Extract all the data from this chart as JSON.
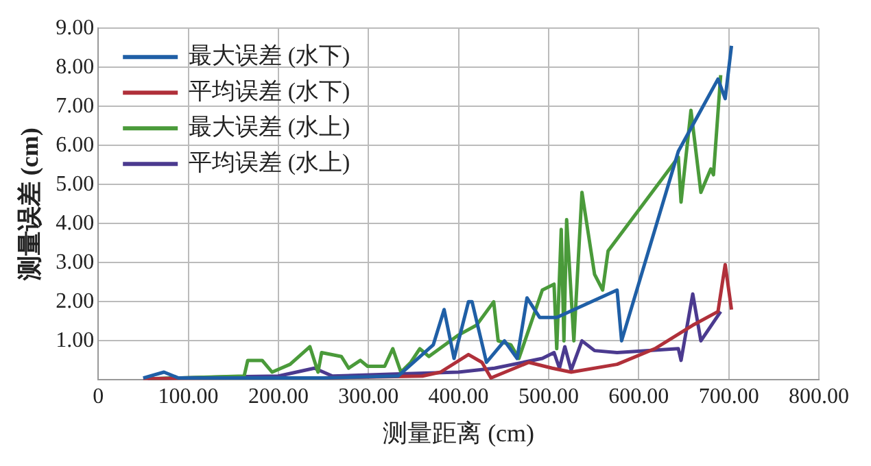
{
  "chart_data": {
    "type": "line",
    "xlabel": "测量距离 (cm)",
    "ylabel": "测量误差 (cm)",
    "xlim": [
      0,
      800
    ],
    "ylim": [
      0,
      9
    ],
    "xticks": [
      0,
      {
        "value": 100,
        "label": "100.00"
      },
      {
        "value": 200,
        "label": "200.00"
      },
      {
        "value": 300,
        "label": "300.00"
      },
      {
        "value": 400,
        "label": "400.00"
      },
      {
        "value": 500,
        "label": "500.00"
      },
      {
        "value": 600,
        "label": "600.00"
      },
      {
        "value": 700,
        "label": "700.00"
      },
      {
        "value": 800,
        "label": "800.00"
      }
    ],
    "yticks": [
      {
        "value": 0,
        "label": null
      },
      {
        "value": 1,
        "label": "1.00"
      },
      {
        "value": 2,
        "label": "2.00"
      },
      {
        "value": 3,
        "label": "3.00"
      },
      {
        "value": 4,
        "label": "4.00"
      },
      {
        "value": 5,
        "label": "5.00"
      },
      {
        "value": 6,
        "label": "6.00"
      },
      {
        "value": 7,
        "label": "7.00"
      },
      {
        "value": 8,
        "label": "8.00"
      },
      {
        "value": 9,
        "label": "9.00"
      }
    ],
    "grid": true,
    "legend": "top left",
    "marker": "none",
    "line_style": "solid",
    "series": [
      {
        "name": "最大误差 (水下)",
        "color": "#1f5fa6",
        "x": [
          50,
          73,
          89,
          150,
          250,
          333,
          372,
          384,
          395,
          411,
          415,
          431,
          451,
          465,
          476,
          490,
          509,
          576,
          581,
          644,
          688,
          696,
          703
        ],
        "values": [
          0.05,
          0.2,
          0.05,
          0.05,
          0.05,
          0.1,
          0.9,
          1.8,
          0.55,
          2.0,
          2.0,
          0.45,
          1.0,
          0.55,
          2.1,
          1.6,
          1.6,
          2.3,
          1.0,
          5.85,
          7.7,
          7.2,
          8.55
        ]
      },
      {
        "name": "平均误差 (水下)",
        "color": "#b0303a",
        "x": [
          50,
          150,
          250,
          360,
          380,
          411,
          426,
          436,
          478,
          504,
          525,
          576,
          618,
          660,
          688,
          696,
          703
        ],
        "values": [
          0.03,
          0.05,
          0.05,
          0.1,
          0.2,
          0.65,
          0.45,
          0.05,
          0.45,
          0.3,
          0.2,
          0.4,
          0.8,
          1.4,
          1.75,
          2.95,
          1.8
        ]
      },
      {
        "name": "最大误差 (水上)",
        "color": "#4a9a3a",
        "x": [
          58,
          162,
          166,
          182,
          193,
          213,
          235,
          244,
          248,
          270,
          278,
          291,
          299,
          318,
          327,
          336,
          347,
          357,
          367,
          400,
          420,
          439,
          444,
          458,
          467,
          493,
          506,
          509,
          514,
          517,
          520,
          528,
          537,
          551,
          560,
          566,
          644,
          647,
          658,
          669,
          680,
          683,
          691
        ],
        "values": [
          0.03,
          0.1,
          0.5,
          0.5,
          0.2,
          0.4,
          0.85,
          0.2,
          0.7,
          0.6,
          0.3,
          0.5,
          0.35,
          0.35,
          0.8,
          0.2,
          0.45,
          0.8,
          0.6,
          1.15,
          1.4,
          2.0,
          1.0,
          0.9,
          0.55,
          2.3,
          2.45,
          0.8,
          3.85,
          1.0,
          4.1,
          1.0,
          4.8,
          2.7,
          2.3,
          3.3,
          5.7,
          4.55,
          6.9,
          4.8,
          5.4,
          5.25,
          7.8
        ]
      },
      {
        "name": "平均误差 (水上)",
        "color": "#4b3a8f",
        "x": [
          55,
          150,
          200,
          240,
          260,
          330,
          400,
          440,
          493,
          506,
          512,
          518,
          525,
          537,
          551,
          576,
          644,
          647,
          660,
          669,
          691
        ],
        "values": [
          0.03,
          0.08,
          0.1,
          0.3,
          0.1,
          0.15,
          0.2,
          0.3,
          0.55,
          0.7,
          0.3,
          0.85,
          0.25,
          1.0,
          0.75,
          0.7,
          0.8,
          0.5,
          2.2,
          1.0,
          1.75
        ]
      }
    ]
  }
}
